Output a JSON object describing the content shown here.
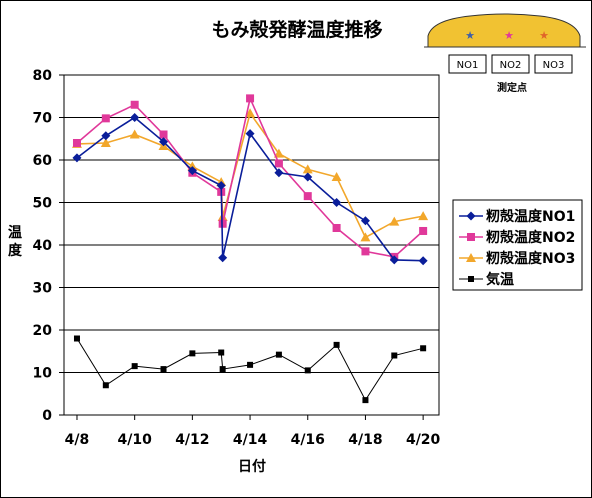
{
  "chart_data": {
    "type": "line",
    "title": "もみ殻発酵温度推移",
    "xlabel": "日付",
    "ylabel": "温度",
    "ylim": [
      0,
      80
    ],
    "yticks": [
      "0",
      "10",
      "20",
      "30",
      "40",
      "50",
      "60",
      "70",
      "80"
    ],
    "x_tick_labels": [
      "4/8",
      "4/10",
      "4/12",
      "4/14",
      "4/16",
      "4/18",
      "4/20"
    ],
    "x_tick_days": [
      8,
      10,
      12,
      14,
      16,
      18,
      20
    ],
    "xlim_days": [
      7.55,
      20.55
    ],
    "grid": "horizontal",
    "legend_placement": "right",
    "series": [
      {
        "name": "籾殻温度NO1",
        "color": "#0a1e9a",
        "marker": "diamond",
        "points": [
          [
            8.0,
            60.5
          ],
          [
            9.0,
            65.7
          ],
          [
            10.0,
            70.0
          ],
          [
            11.0,
            64.3
          ],
          [
            12.0,
            57.5
          ],
          [
            13.0,
            54.0
          ],
          [
            13.05,
            37.0
          ],
          [
            14.0,
            66.2
          ],
          [
            15.0,
            57.0
          ],
          [
            16.0,
            56.0
          ],
          [
            17.0,
            50.0
          ],
          [
            18.0,
            45.7
          ],
          [
            19.0,
            36.5
          ],
          [
            20.0,
            36.3
          ]
        ]
      },
      {
        "name": "籾殻温度NO2",
        "color": "#e0389a",
        "marker": "square",
        "points": [
          [
            8.0,
            64.0
          ],
          [
            9.0,
            69.8
          ],
          [
            10.0,
            73.0
          ],
          [
            11.0,
            66.0
          ],
          [
            12.0,
            57.0
          ],
          [
            13.0,
            52.5
          ],
          [
            13.05,
            45.0
          ],
          [
            14.0,
            74.5
          ],
          [
            15.0,
            59.2
          ],
          [
            16.0,
            51.5
          ],
          [
            17.0,
            44.0
          ],
          [
            18.0,
            38.5
          ],
          [
            19.0,
            37.2
          ],
          [
            20.0,
            43.3
          ]
        ]
      },
      {
        "name": "籾殻温度NO3",
        "color": "#f2a72b",
        "marker": "triangle",
        "points": [
          [
            8.0,
            63.8
          ],
          [
            9.0,
            64.0
          ],
          [
            10.0,
            66.0
          ],
          [
            11.0,
            63.3
          ],
          [
            12.0,
            58.5
          ],
          [
            13.0,
            54.8
          ],
          [
            13.05,
            46.6
          ],
          [
            14.0,
            71.0
          ],
          [
            15.0,
            61.5
          ],
          [
            16.0,
            57.8
          ],
          [
            17.0,
            56.0
          ],
          [
            18.0,
            41.8
          ],
          [
            19.0,
            45.5
          ],
          [
            20.0,
            46.8
          ]
        ]
      },
      {
        "name": "気温",
        "color": "#000000",
        "marker": "square",
        "points": [
          [
            8.0,
            18.0
          ],
          [
            9.0,
            7.0
          ],
          [
            10.0,
            11.5
          ],
          [
            11.0,
            10.8
          ],
          [
            12.0,
            14.5
          ],
          [
            13.0,
            14.7
          ],
          [
            13.05,
            10.8
          ],
          [
            14.0,
            11.8
          ],
          [
            15.0,
            14.2
          ],
          [
            16.0,
            10.5
          ],
          [
            17.0,
            16.5
          ],
          [
            18.0,
            3.5
          ],
          [
            19.0,
            14.0
          ],
          [
            20.0,
            15.7
          ]
        ]
      }
    ]
  },
  "inset": {
    "boxes": [
      "NO1",
      "NO2",
      "NO3"
    ],
    "caption": "測定点",
    "mound_color": "#f1c232",
    "star_colors": [
      "#3d5fa8",
      "#e0389a",
      "#e0642a"
    ]
  }
}
